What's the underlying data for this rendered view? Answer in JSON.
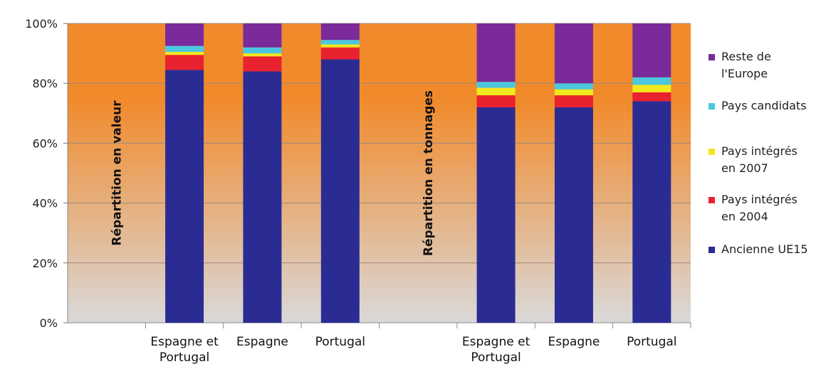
{
  "chart_data": {
    "type": "bar",
    "stacked": true,
    "percent_stacked": true,
    "ylim": [
      0,
      100
    ],
    "yticks": [
      "0%",
      "20%",
      "40%",
      "60%",
      "80%",
      "100%"
    ],
    "grid": true,
    "legend_position": "right",
    "groups": [
      {
        "label": "Répartition en valeur",
        "categories": [
          [
            "Espagne et",
            "Portugal"
          ],
          [
            "Espagne"
          ],
          [
            "Portugal"
          ]
        ],
        "series": [
          {
            "name": "Ancienne UE15",
            "values": [
              84.5,
              84,
              88
            ]
          },
          {
            "name": "Pays intégrés en 2004",
            "values": [
              5,
              5,
              4
            ]
          },
          {
            "name": "Pays intégrés en 2007",
            "values": [
              1,
              1,
              1
            ]
          },
          {
            "name": "Pays candidats",
            "values": [
              2,
              2,
              1.5
            ]
          },
          {
            "name": "Reste de l'Europe",
            "values": [
              7.5,
              8,
              5.5
            ]
          }
        ]
      },
      {
        "label": "Répartition en tonnages",
        "categories": [
          [
            "Espagne et",
            "Portugal"
          ],
          [
            "Espagne"
          ],
          [
            "Portugal"
          ]
        ],
        "series": [
          {
            "name": "Ancienne UE15",
            "values": [
              72,
              72,
              74
            ]
          },
          {
            "name": "Pays intégrés en 2004",
            "values": [
              4,
              4,
              3
            ]
          },
          {
            "name": "Pays intégrés en 2007",
            "values": [
              2.5,
              2,
              2.5
            ]
          },
          {
            "name": "Pays candidats",
            "values": [
              2,
              2,
              2.5
            ]
          },
          {
            "name": "Reste de l'Europe",
            "values": [
              19.5,
              20,
              18
            ]
          }
        ]
      }
    ],
    "legend": [
      {
        "lines": [
          "Reste de",
          "l'Europe"
        ],
        "color": "#7a2a9a"
      },
      {
        "lines": [
          "Pays candidats"
        ],
        "color": "#4bc8e0"
      },
      {
        "lines": [
          "Pays intégrés",
          "en 2007"
        ],
        "color": "#f2e81e"
      },
      {
        "lines": [
          "Pays intégrés",
          "en 2004"
        ],
        "color": "#e8222e"
      },
      {
        "lines": [
          "Ancienne UE15"
        ],
        "color": "#2b2c93"
      }
    ],
    "colors": {
      "Ancienne UE15": "#2b2c93",
      "Pays intégrés en 2004": "#e8222e",
      "Pays intégrés en 2007": "#f2e81e",
      "Pays candidats": "#4bc8e0",
      "Reste de l'Europe": "#7a2a9a",
      "plot_background_top": "#f18a2b",
      "plot_background_bottom": "#d9d9d9",
      "gridline": "#9a8a7a"
    }
  }
}
